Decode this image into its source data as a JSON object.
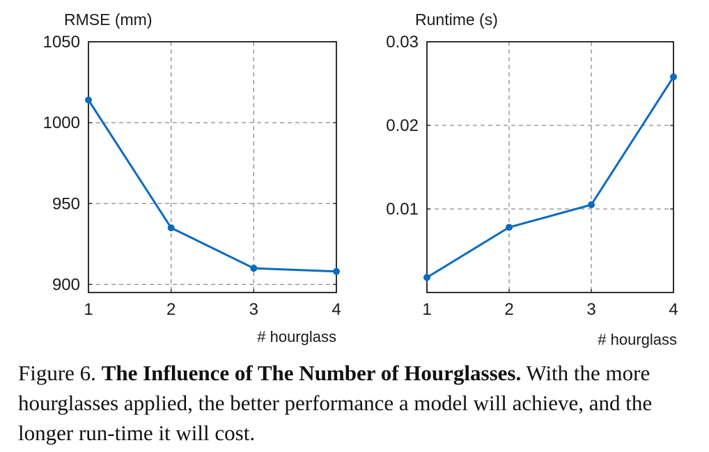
{
  "chart_data": [
    {
      "type": "line",
      "title": "RMSE (mm)",
      "xlabel": "# hourglass",
      "ylabel": "",
      "x": [
        1,
        2,
        3,
        4
      ],
      "xlim": [
        1,
        4
      ],
      "xticks": [
        "1",
        "2",
        "3",
        "4"
      ],
      "ylim": [
        895,
        1050
      ],
      "yticks": [
        900,
        950,
        1000,
        1050
      ],
      "grid": true,
      "series": [
        {
          "values": [
            1014,
            935,
            910,
            908
          ]
        }
      ],
      "color": "#0a6bbf"
    },
    {
      "type": "line",
      "title": "Runtime (s)",
      "xlabel": "# hourglass",
      "ylabel": "",
      "x": [
        1,
        2,
        3,
        4
      ],
      "xlim": [
        1,
        4
      ],
      "xticks": [
        "1",
        "2",
        "3",
        "4"
      ],
      "ylim": [
        0,
        0.03
      ],
      "yticks": [
        0.01,
        0.02,
        0.03
      ],
      "grid": true,
      "series": [
        {
          "values": [
            0.0018,
            0.0078,
            0.0105,
            0.0258
          ]
        }
      ],
      "color": "#0a6bbf"
    }
  ],
  "caption": {
    "label": "Figure 6.",
    "title": "The Influence of The Number of Hourglasses.",
    "text": "With the more hourglasses applied, the better performance a model will achieve, and the longer run-time it will cost."
  }
}
